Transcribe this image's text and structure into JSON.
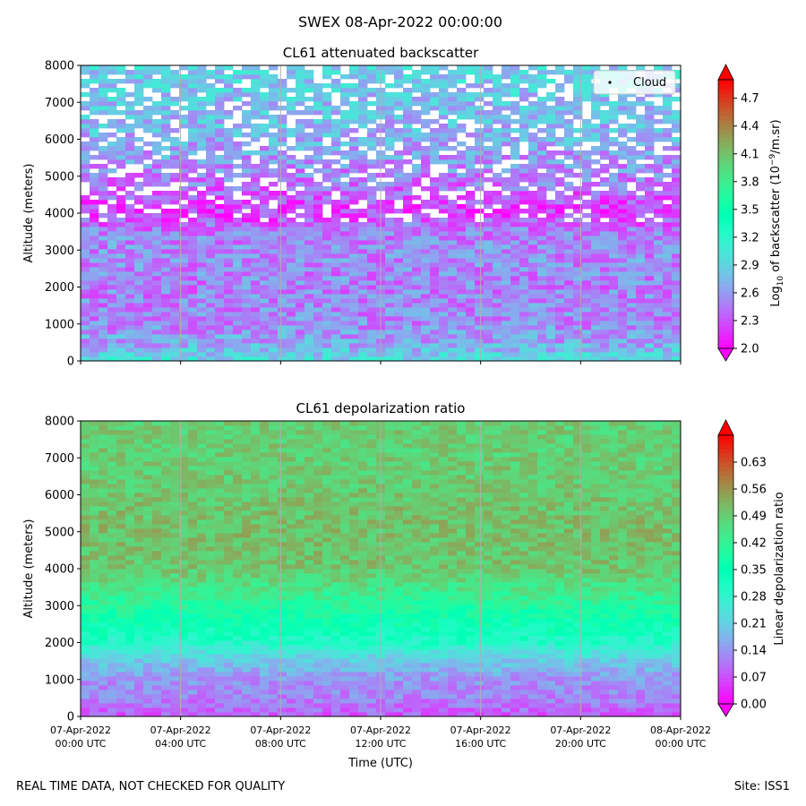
{
  "figure": {
    "suptitle": "SWEX 08-Apr-2022 00:00:00",
    "footer_left": "REAL TIME DATA, NOT CHECKED FOR QUALITY",
    "footer_right": "Site: ISS1",
    "xlabel": "Time (UTC)"
  },
  "chart_data": [
    {
      "type": "heatmap",
      "title": "CL61 attenuated backscatter",
      "ylabel": "Altitude (meters)",
      "ylim": [
        0,
        8000
      ],
      "yticks": [
        "0",
        "1000",
        "2000",
        "3000",
        "4000",
        "5000",
        "6000",
        "7000",
        "8000"
      ],
      "xlim_hours": [
        0,
        24
      ],
      "xticks_hours": [
        0,
        4,
        8,
        12,
        16,
        20,
        24
      ],
      "xticklabels_shown": false,
      "grid": "vertical at time ticks",
      "legend": {
        "label": "Cloud",
        "placement": "top-right"
      },
      "colorbar": {
        "label_prefix": "Log",
        "label_sub": "10",
        "label_mid": " of backscatter (10",
        "label_sup": "−9",
        "label_suffix": "/m.sr)",
        "range": [
          2.0,
          4.9
        ],
        "ticks": [
          "2.0",
          "2.3",
          "2.6",
          "2.9",
          "3.2",
          "3.5",
          "3.8",
          "4.1",
          "4.4",
          "4.7"
        ],
        "colormap": "rainbow",
        "extend": "both"
      },
      "profile": [
        {
          "alt": 0,
          "value": 3.0
        },
        {
          "alt": 200,
          "value": 2.85
        },
        {
          "alt": 500,
          "value": 2.65
        },
        {
          "alt": 1000,
          "value": 2.55
        },
        {
          "alt": 2000,
          "value": 2.5
        },
        {
          "alt": 3000,
          "value": 2.55
        },
        {
          "alt": 3500,
          "value": 2.5
        },
        {
          "alt": 4000,
          "value": 2.2
        },
        {
          "alt": 5000,
          "value": 2.5
        },
        {
          "alt": 6000,
          "value": 2.7
        },
        {
          "alt": 7000,
          "value": 2.8
        },
        {
          "alt": 8000,
          "value": 2.9
        }
      ]
    },
    {
      "type": "heatmap",
      "title": "CL61 depolarization ratio",
      "ylabel": "Altitude (meters)",
      "ylim": [
        0,
        8000
      ],
      "yticks": [
        "0",
        "1000",
        "2000",
        "3000",
        "4000",
        "5000",
        "6000",
        "7000",
        "8000"
      ],
      "xlim_hours": [
        0,
        24
      ],
      "xticks_hours": [
        0,
        4,
        8,
        12,
        16,
        20,
        24
      ],
      "xticklabels": [
        [
          "07-Apr-2022",
          "00:00 UTC"
        ],
        [
          "07-Apr-2022",
          "04:00 UTC"
        ],
        [
          "07-Apr-2022",
          "08:00 UTC"
        ],
        [
          "07-Apr-2022",
          "12:00 UTC"
        ],
        [
          "07-Apr-2022",
          "16:00 UTC"
        ],
        [
          "07-Apr-2022",
          "20:00 UTC"
        ],
        [
          "08-Apr-2022",
          "00:00 UTC"
        ]
      ],
      "grid": "vertical at time ticks",
      "colorbar": {
        "label": "Linear depolarization ratio",
        "range": [
          0.0,
          0.7
        ],
        "ticks": [
          "0.00",
          "0.07",
          "0.14",
          "0.21",
          "0.28",
          "0.35",
          "0.42",
          "0.49",
          "0.56",
          "0.63"
        ],
        "colormap": "rainbow",
        "extend": "both"
      },
      "profile": [
        {
          "alt": 0,
          "value": 0.08
        },
        {
          "alt": 500,
          "value": 0.12
        },
        {
          "alt": 1000,
          "value": 0.14
        },
        {
          "alt": 1500,
          "value": 0.2
        },
        {
          "alt": 2000,
          "value": 0.3
        },
        {
          "alt": 3000,
          "value": 0.4
        },
        {
          "alt": 4000,
          "value": 0.5
        },
        {
          "alt": 5000,
          "value": 0.51
        },
        {
          "alt": 6000,
          "value": 0.5
        },
        {
          "alt": 7000,
          "value": 0.49
        },
        {
          "alt": 8000,
          "value": 0.49
        }
      ]
    }
  ]
}
